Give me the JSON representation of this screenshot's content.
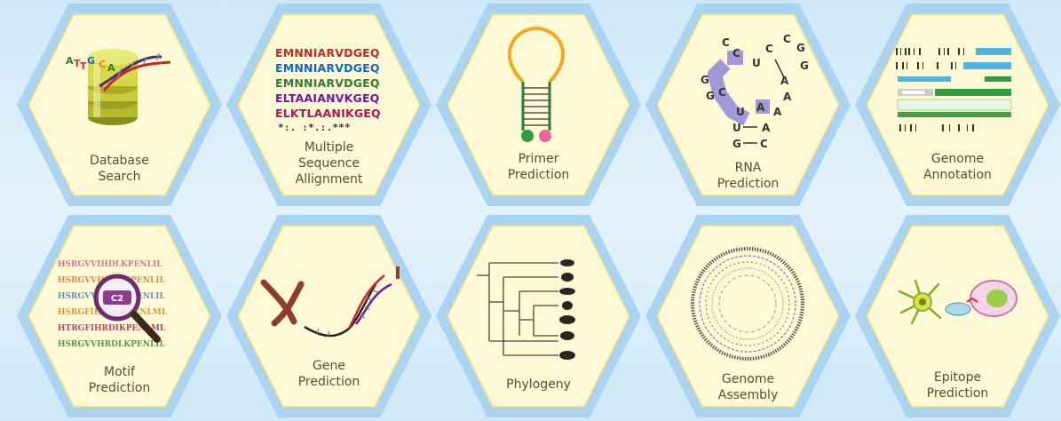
{
  "tiles": [
    {
      "id": "database-search",
      "label": "Database\nSearch",
      "art_text": [
        "A",
        "T",
        "T",
        "G",
        "C",
        "A"
      ]
    },
    {
      "id": "multiple-sequence-allignment",
      "label": "Multiple\nSequence\nAllignment",
      "sequences": [
        "EMNNIARVDGEQ",
        "EMNNIARVDGEQ",
        "EMNNIARVDGEQ",
        "ELTAAIANVKGEQ",
        "ELKTLAANIKGEQ"
      ],
      "consensus": "*:. :*.:.***"
    },
    {
      "id": "primer-prediction",
      "label": "Primer\nPrediction"
    },
    {
      "id": "rna-prediction",
      "label": "RNA\nPrediction",
      "bases": [
        "C",
        "C",
        "G",
        "G",
        "C",
        "U",
        "C",
        "C",
        "G",
        "G",
        "A",
        "A",
        "A",
        "U",
        "A",
        "A",
        "U",
        "G",
        "C"
      ]
    },
    {
      "id": "genome-annotation",
      "label": "Genome\nAnnotation"
    },
    {
      "id": "motif-prediction",
      "label": "Motif\nPrediction",
      "sequences": [
        "HSRGVVIHDLKPENLIL",
        "HSRGVVHRDLKPENLIL",
        "HSRGVVHRDLKPENLIL",
        "HSRGFIHRDLKPENLML",
        "HTRGFIHRDIKPENLML",
        "HSRGVVHRDLKPENLIL"
      ],
      "lens_text": "C2"
    },
    {
      "id": "gene-prediction",
      "label": "Gene\nPrediction"
    },
    {
      "id": "phylogeny",
      "label": "Phylogeny"
    },
    {
      "id": "genome-assembly",
      "label": "Genome\nAssembly"
    },
    {
      "id": "epitope-prediction",
      "label": "Epitope\nPrediction"
    }
  ],
  "colors": {
    "hex_outer": "#a9d3f0",
    "hex_inner": "#fff9d6",
    "hex_inner_border": "#f0dd7a",
    "label": "#5a4a3c"
  }
}
